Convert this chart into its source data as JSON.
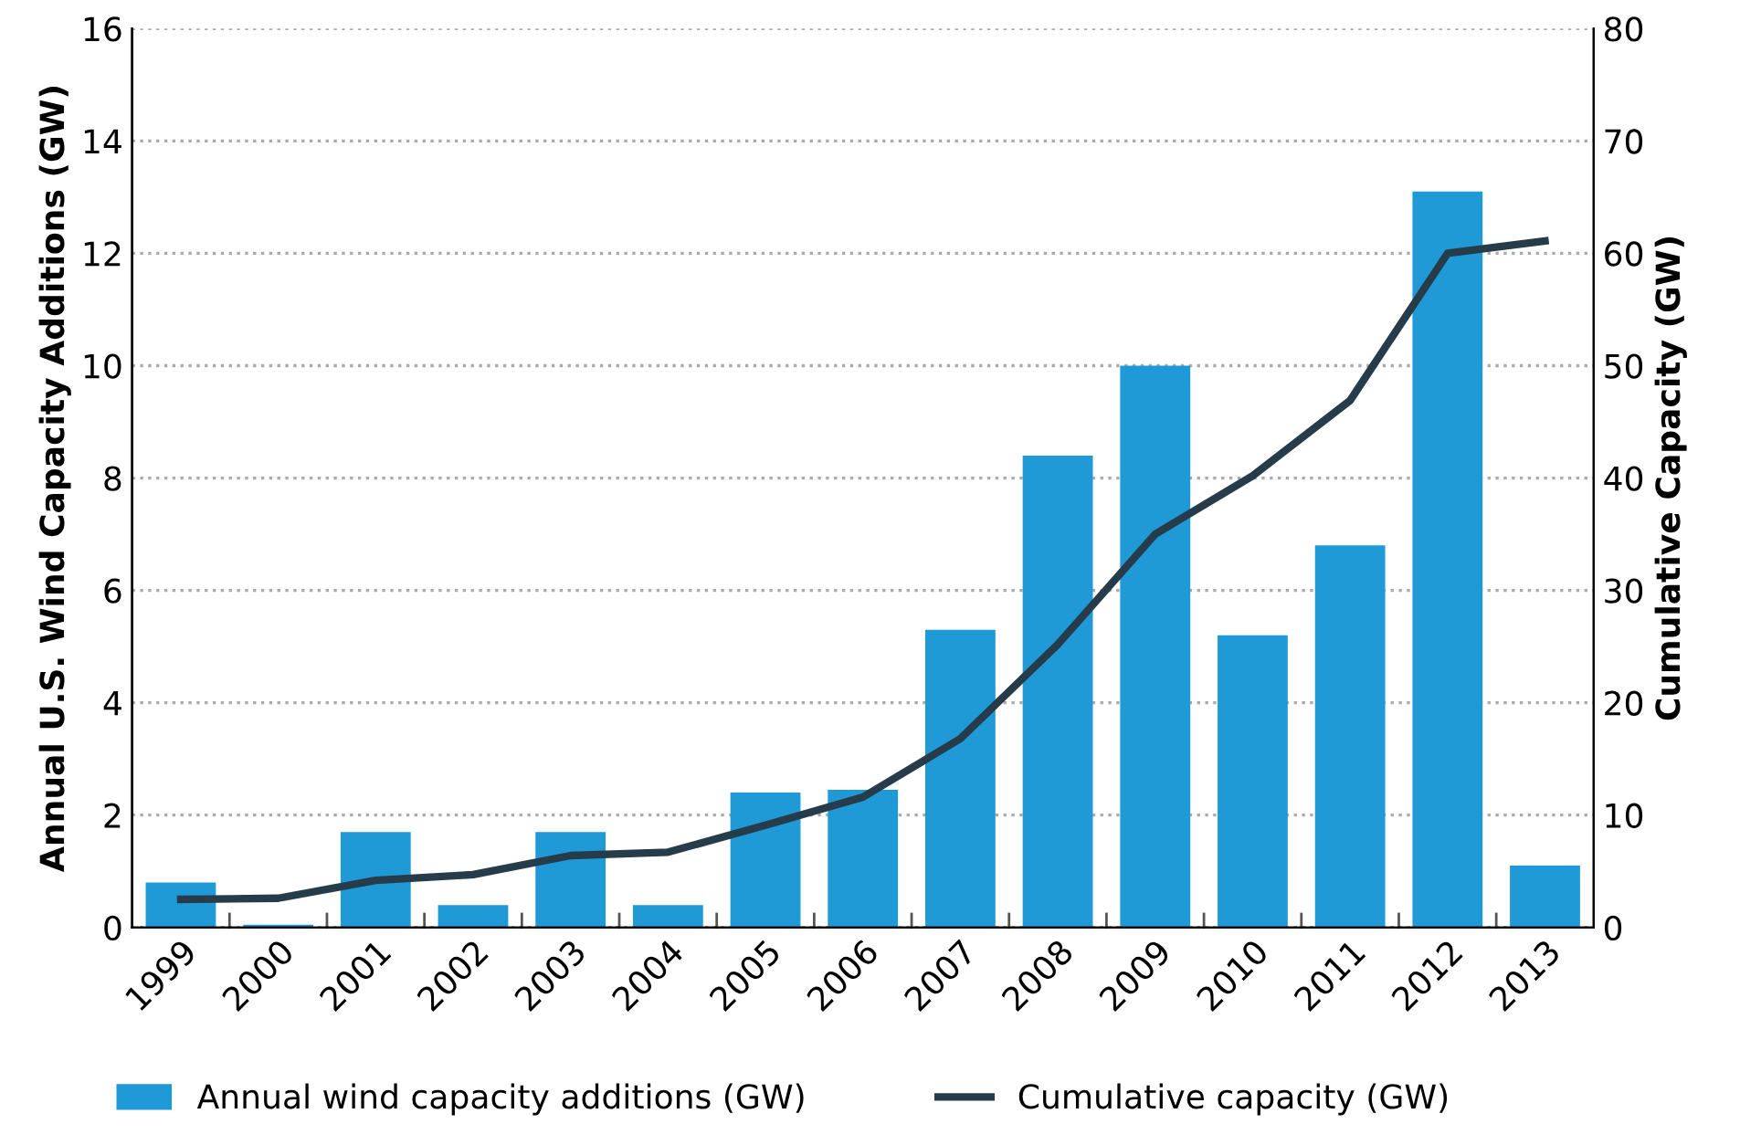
{
  "chart_data": {
    "type": "bar",
    "ylabel": "Annual U.S. Wind Capacity Additions (GW)",
    "y2label": "Cumulative Capacity (GW)",
    "categories": [
      "1999",
      "2000",
      "2001",
      "2002",
      "2003",
      "2004",
      "2005",
      "2006",
      "2007",
      "2008",
      "2009",
      "2010",
      "2011",
      "2012",
      "2013"
    ],
    "series": [
      {
        "name": "Annual wind capacity additions (GW)",
        "color": "#1f9ad6",
        "values": [
          0.8,
          0.05,
          1.7,
          0.4,
          1.7,
          0.4,
          2.4,
          2.45,
          5.3,
          8.4,
          10.0,
          5.2,
          6.8,
          13.1,
          1.1
        ]
      },
      {
        "name": "Cumulative capacity (GW)",
        "type": "line",
        "axis": "y2",
        "color": "#263c4a",
        "values": [
          2.5,
          2.6,
          4.2,
          4.7,
          6.4,
          6.7,
          9.1,
          11.6,
          16.8,
          25.2,
          35.0,
          40.2,
          46.9,
          60.0,
          61.1
        ]
      }
    ],
    "ylim": [
      0,
      16
    ],
    "yticks": [
      0,
      2,
      4,
      6,
      8,
      10,
      12,
      14,
      16
    ],
    "y2lim": [
      0,
      80
    ],
    "y2ticks": [
      0,
      10,
      20,
      30,
      40,
      50,
      60,
      70,
      80
    ],
    "grid": "y",
    "legend": "bottom",
    "marker": "none",
    "line_style": "solid"
  }
}
